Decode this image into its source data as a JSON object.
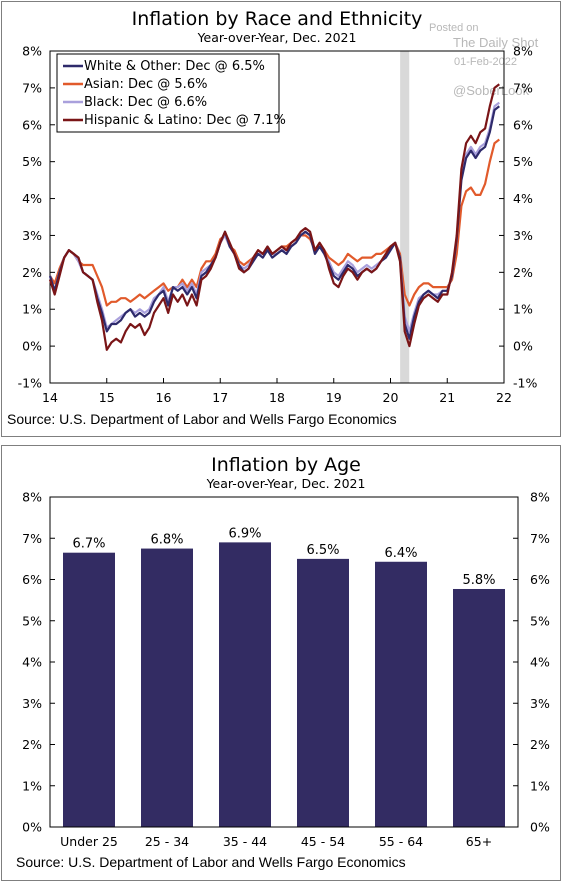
{
  "watermark": {
    "line1": "Posted on",
    "line2": "The Daily Shot",
    "line3": "01-Feb-2022",
    "line4": "@SoberLook"
  },
  "chart_data": [
    {
      "type": "line",
      "title": "Inflation by Race and Ethnicity",
      "subtitle": "Year-over-Year, Dec. 2021",
      "source": "Source: U.S. Department of Labor and Wells Fargo Economics",
      "xlim": [
        14,
        22
      ],
      "ylim": [
        -1,
        8
      ],
      "x_ticks": [
        "14",
        "15",
        "16",
        "17",
        "18",
        "19",
        "20",
        "21",
        "22"
      ],
      "y_ticks_left": [
        "-1%",
        "0%",
        "1%",
        "2%",
        "3%",
        "4%",
        "5%",
        "6%",
        "7%",
        "8%"
      ],
      "y_ticks_right": [
        "-1%",
        "0%",
        "1%",
        "2%",
        "3%",
        "4%",
        "5%",
        "6%",
        "7%",
        "8%"
      ],
      "shaded_region": [
        20.17,
        20.33
      ],
      "legend_position": "top-left",
      "x": [
        14.0,
        14.083,
        14.167,
        14.25,
        14.333,
        14.417,
        14.5,
        14.583,
        14.667,
        14.75,
        14.833,
        14.917,
        15.0,
        15.083,
        15.167,
        15.25,
        15.333,
        15.417,
        15.5,
        15.583,
        15.667,
        15.75,
        15.833,
        15.917,
        16.0,
        16.083,
        16.167,
        16.25,
        16.333,
        16.417,
        16.5,
        16.583,
        16.667,
        16.75,
        16.833,
        16.917,
        17.0,
        17.083,
        17.167,
        17.25,
        17.333,
        17.417,
        17.5,
        17.583,
        17.667,
        17.75,
        17.833,
        17.917,
        18.0,
        18.083,
        18.167,
        18.25,
        18.333,
        18.417,
        18.5,
        18.583,
        18.667,
        18.75,
        18.833,
        18.917,
        19.0,
        19.083,
        19.167,
        19.25,
        19.333,
        19.417,
        19.5,
        19.583,
        19.667,
        19.75,
        19.833,
        19.917,
        20.0,
        20.083,
        20.167,
        20.25,
        20.333,
        20.417,
        20.5,
        20.583,
        20.667,
        20.75,
        20.833,
        20.917,
        21.0,
        21.083,
        21.167,
        21.25,
        21.333,
        21.417,
        21.5,
        21.583,
        21.667,
        21.75,
        21.833,
        21.917
      ],
      "series": [
        {
          "name": "White & Other: Dec @ 6.5%",
          "color": "#2e2a6b",
          "values": [
            1.9,
            1.5,
            2.0,
            2.4,
            2.6,
            2.5,
            2.4,
            2.0,
            1.9,
            1.8,
            1.3,
            0.9,
            0.4,
            0.6,
            0.6,
            0.7,
            0.9,
            1.0,
            0.8,
            0.9,
            0.8,
            0.9,
            1.2,
            1.4,
            1.5,
            1.1,
            1.6,
            1.5,
            1.6,
            1.4,
            1.6,
            1.3,
            1.9,
            2.0,
            2.2,
            2.4,
            2.8,
            3.1,
            2.7,
            2.5,
            2.2,
            2.0,
            2.1,
            2.3,
            2.5,
            2.4,
            2.6,
            2.4,
            2.5,
            2.6,
            2.5,
            2.7,
            2.8,
            3.0,
            3.1,
            3.0,
            2.5,
            2.7,
            2.5,
            2.2,
            1.9,
            1.8,
            2.0,
            2.2,
            2.1,
            1.9,
            2.0,
            2.1,
            2.0,
            2.1,
            2.3,
            2.4,
            2.6,
            2.8,
            2.4,
            0.6,
            0.2,
            0.8,
            1.2,
            1.4,
            1.5,
            1.4,
            1.3,
            1.5,
            1.5,
            1.9,
            2.9,
            4.5,
            5.1,
            5.3,
            5.1,
            5.3,
            5.4,
            5.8,
            6.4,
            6.5
          ]
        },
        {
          "name": "Asian: Dec @ 5.6%",
          "color": "#e15a2b",
          "values": [
            1.9,
            1.7,
            2.1,
            2.4,
            2.6,
            2.5,
            2.3,
            2.2,
            2.2,
            2.2,
            1.9,
            1.6,
            1.1,
            1.2,
            1.2,
            1.3,
            1.3,
            1.2,
            1.3,
            1.4,
            1.3,
            1.4,
            1.5,
            1.6,
            1.7,
            1.5,
            1.6,
            1.6,
            1.8,
            1.6,
            1.8,
            1.6,
            2.1,
            2.3,
            2.3,
            2.5,
            2.9,
            3.0,
            2.7,
            2.6,
            2.3,
            2.2,
            2.3,
            2.4,
            2.6,
            2.5,
            2.6,
            2.5,
            2.6,
            2.7,
            2.7,
            2.8,
            2.9,
            3.0,
            3.0,
            2.9,
            2.6,
            2.8,
            2.6,
            2.4,
            2.3,
            2.2,
            2.3,
            2.5,
            2.4,
            2.3,
            2.4,
            2.4,
            2.4,
            2.5,
            2.5,
            2.6,
            2.7,
            2.8,
            2.5,
            1.4,
            1.1,
            1.4,
            1.6,
            1.7,
            1.7,
            1.6,
            1.6,
            1.6,
            1.6,
            1.8,
            2.5,
            3.8,
            4.2,
            4.3,
            4.1,
            4.1,
            4.4,
            5.0,
            5.5,
            5.6
          ]
        },
        {
          "name": "Black: Dec @ 6.6%",
          "color": "#a9a0dc",
          "values": [
            1.9,
            1.5,
            2.0,
            2.4,
            2.6,
            2.5,
            2.3,
            2.0,
            1.9,
            1.8,
            1.4,
            1.0,
            0.5,
            0.6,
            0.7,
            0.8,
            0.9,
            1.0,
            0.9,
            1.0,
            0.9,
            1.0,
            1.3,
            1.4,
            1.6,
            1.2,
            1.6,
            1.6,
            1.7,
            1.5,
            1.7,
            1.4,
            2.0,
            2.1,
            2.2,
            2.4,
            2.8,
            3.0,
            2.7,
            2.5,
            2.2,
            2.1,
            2.2,
            2.4,
            2.5,
            2.5,
            2.6,
            2.5,
            2.5,
            2.6,
            2.6,
            2.7,
            2.8,
            3.0,
            3.1,
            3.0,
            2.6,
            2.7,
            2.5,
            2.3,
            2.0,
            1.9,
            2.1,
            2.3,
            2.2,
            2.0,
            2.1,
            2.2,
            2.1,
            2.2,
            2.3,
            2.4,
            2.6,
            2.8,
            2.4,
            0.8,
            0.4,
            0.9,
            1.3,
            1.4,
            1.5,
            1.4,
            1.4,
            1.5,
            1.5,
            1.9,
            2.9,
            4.6,
            5.2,
            5.4,
            5.2,
            5.4,
            5.5,
            5.9,
            6.5,
            6.6
          ]
        },
        {
          "name": "Hispanic & Latino: Dec @ 7.1%",
          "color": "#7a1517",
          "values": [
            1.8,
            1.4,
            1.9,
            2.4,
            2.6,
            2.5,
            2.4,
            2.0,
            1.9,
            1.8,
            1.2,
            0.7,
            -0.1,
            0.1,
            0.2,
            0.1,
            0.4,
            0.6,
            0.5,
            0.6,
            0.3,
            0.5,
            0.9,
            1.1,
            1.3,
            0.9,
            1.4,
            1.2,
            1.4,
            1.1,
            1.4,
            1.1,
            1.8,
            1.9,
            2.1,
            2.4,
            2.8,
            3.1,
            2.8,
            2.5,
            2.1,
            2.0,
            2.1,
            2.4,
            2.6,
            2.5,
            2.7,
            2.5,
            2.6,
            2.7,
            2.6,
            2.8,
            2.9,
            3.1,
            3.2,
            3.1,
            2.6,
            2.8,
            2.6,
            2.1,
            1.7,
            1.6,
            1.9,
            2.1,
            2.0,
            1.8,
            2.0,
            2.1,
            2.0,
            2.1,
            2.3,
            2.5,
            2.7,
            2.8,
            2.3,
            0.4,
            0.0,
            0.6,
            1.1,
            1.3,
            1.4,
            1.3,
            1.2,
            1.4,
            1.4,
            2.0,
            3.0,
            4.8,
            5.5,
            5.7,
            5.5,
            5.8,
            5.9,
            6.5,
            7.0,
            7.1
          ]
        }
      ]
    },
    {
      "type": "bar",
      "title": "Inflation by Age",
      "subtitle": "Year-over-Year, Dec. 2021",
      "source": "Source: U.S. Department of Labor and Wells Fargo Economics",
      "categories": [
        "Under 25",
        "25 - 34",
        "35 - 44",
        "45 - 54",
        "55 - 64",
        "65+"
      ],
      "values": [
        6.65,
        6.75,
        6.9,
        6.5,
        6.43,
        5.77
      ],
      "data_labels": [
        "6.7%",
        "6.8%",
        "6.9%",
        "6.5%",
        "6.4%",
        "5.8%"
      ],
      "color": "#332c63",
      "ylim": [
        0,
        8
      ],
      "y_ticks_left": [
        "0%",
        "1%",
        "2%",
        "3%",
        "4%",
        "5%",
        "6%",
        "7%",
        "8%"
      ],
      "y_ticks_right": [
        "0%",
        "1%",
        "2%",
        "3%",
        "4%",
        "5%",
        "6%",
        "7%",
        "8%"
      ]
    }
  ]
}
